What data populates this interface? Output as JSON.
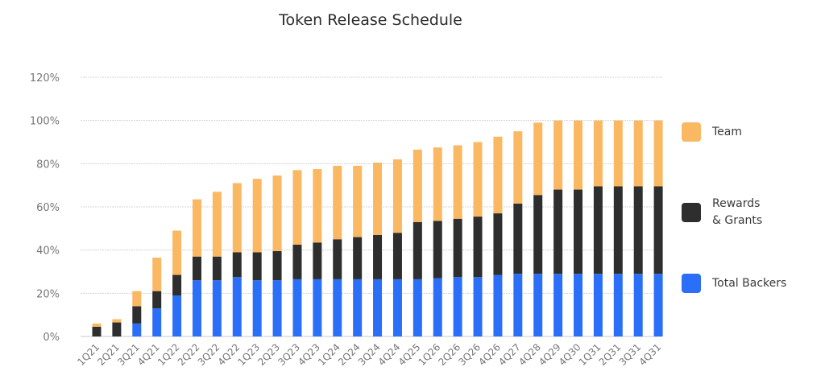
{
  "chart_data": {
    "type": "bar",
    "stacked": true,
    "title": "Token Release Schedule",
    "xlabel": "",
    "ylabel": "",
    "ylim": [
      0,
      120
    ],
    "y_ticks": [
      "0%",
      "20%",
      "40%",
      "60%",
      "80%",
      "100%",
      "120%"
    ],
    "grid": true,
    "legend_position": "right",
    "categories": [
      "1Q21",
      "2Q21",
      "3Q21",
      "4Q21",
      "1Q22",
      "2Q22",
      "3Q22",
      "4Q22",
      "1Q23",
      "2Q23",
      "3Q23",
      "4Q23",
      "1Q24",
      "2Q24",
      "3Q24",
      "4Q24",
      "4Q25",
      "1Q26",
      "2Q26",
      "3Q26",
      "4Q26",
      "4Q27",
      "4Q28",
      "4Q29",
      "4Q30",
      "1Q31",
      "2Q31",
      "3Q31",
      "4Q31"
    ],
    "series": [
      {
        "name": "Total Backers",
        "color": "#2b6ff8",
        "values": [
          0,
          0,
          6,
          13,
          19,
          26,
          26,
          27.5,
          26,
          26,
          26.5,
          26.5,
          26.5,
          26.5,
          26.5,
          26.5,
          26.5,
          27,
          27.5,
          27.5,
          28.5,
          29,
          29,
          29,
          29,
          29,
          29,
          29,
          29
        ]
      },
      {
        "name": "Rewards\n& Grants",
        "color": "#2e2e2e",
        "values": [
          4.5,
          6.5,
          8,
          8,
          9.5,
          11,
          11,
          11.5,
          13,
          13.5,
          16,
          17,
          18.5,
          19.5,
          20.5,
          21.5,
          26.5,
          26.5,
          27,
          28,
          28.5,
          32.5,
          36.5,
          39,
          39,
          40.5,
          40.5,
          40.5,
          40.5
        ]
      },
      {
        "name": "Team",
        "color": "#fbb862",
        "values": [
          1.5,
          1.5,
          7,
          15.5,
          20.5,
          26.5,
          30,
          32,
          34,
          35,
          34.5,
          34,
          34,
          33,
          33.5,
          34,
          33.5,
          34,
          34,
          34.5,
          35.5,
          33.5,
          33.5,
          32,
          32,
          30.5,
          30.5,
          30.5,
          30.5
        ]
      }
    ]
  },
  "legend": [
    {
      "label": "Team",
      "color": "#fbb862"
    },
    {
      "label": "Rewards\n& Grants",
      "color": "#2e2e2e"
    },
    {
      "label": "Total Backers",
      "color": "#2b6ff8"
    }
  ]
}
